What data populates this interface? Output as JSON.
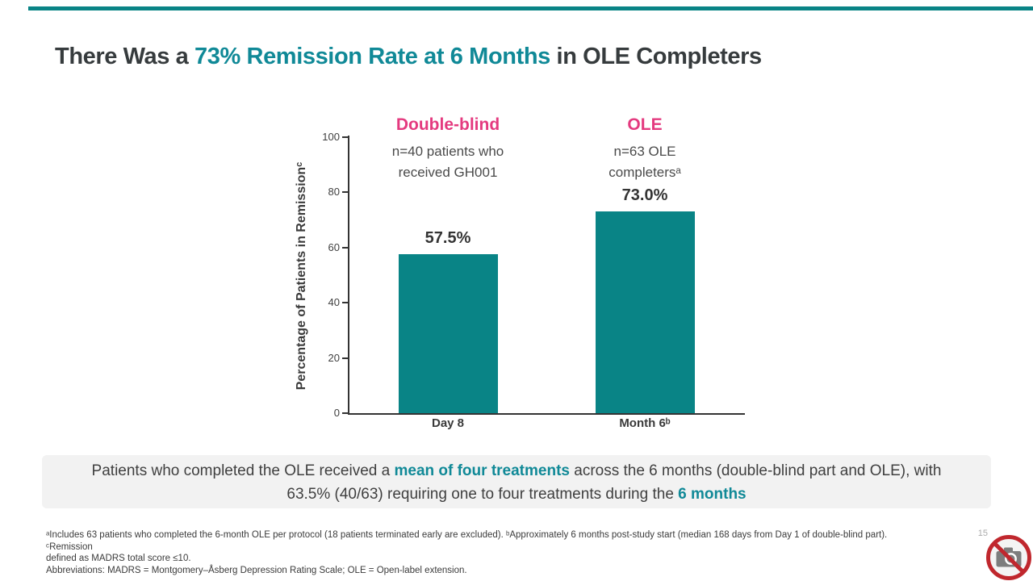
{
  "slide": {
    "title_segments": [
      {
        "text": "There Was a ",
        "highlight": false
      },
      {
        "text": "73% Remission Rate at 6 Months",
        "highlight": true
      },
      {
        "text": " in OLE Completers",
        "highlight": false
      }
    ],
    "page_number": "15"
  },
  "chart_data": {
    "type": "bar",
    "title": "",
    "categories": [
      "Day 8",
      "Month 6ᵇ"
    ],
    "values": [
      57.5,
      73.0
    ],
    "value_labels": [
      "57.5%",
      "73.0%"
    ],
    "xlabel": "",
    "ylabel": "Percentage of Patients in Remissionᶜ",
    "ylim": [
      0,
      100
    ],
    "yticks": [
      0,
      20,
      40,
      60,
      80,
      100
    ],
    "grid": false,
    "legend": "none",
    "bar_color": "#098486",
    "groups": [
      {
        "title": "Double-blind",
        "subtitle": "n=40 patients who\nreceived GH001"
      },
      {
        "title": "OLE",
        "subtitle": "n=63 OLE\ncompletersᵃ"
      }
    ]
  },
  "callout": {
    "segments": [
      {
        "text": "Patients who completed the OLE received a ",
        "highlight": false
      },
      {
        "text": "mean of four treatments",
        "highlight": true
      },
      {
        "text": " across the 6 months (double-blind part and OLE), with 63.5% (40/63) requiring one to four treatments during the ",
        "highlight": false
      },
      {
        "text": "6 months",
        "highlight": true
      }
    ]
  },
  "footnotes": {
    "lines": [
      "ᵃIncludes 63 patients who completed the 6-month OLE per protocol (18 patients terminated early are excluded). ᵇApproximately 6 months post-study start (median 168 days from Day 1 of double-blind part). ᶜRemission",
      "defined as MADRS total score ≤10.",
      "Abbreviations: MADRS = Montgomery–Åsberg Depression Rating Scale; OLE = Open-label extension."
    ]
  },
  "colors": {
    "teal_text": "#108997",
    "teal_bar": "#098486",
    "pink": "#E43A7F",
    "dark_text": "#363B3D",
    "callout_bg": "#F2F2F2"
  }
}
